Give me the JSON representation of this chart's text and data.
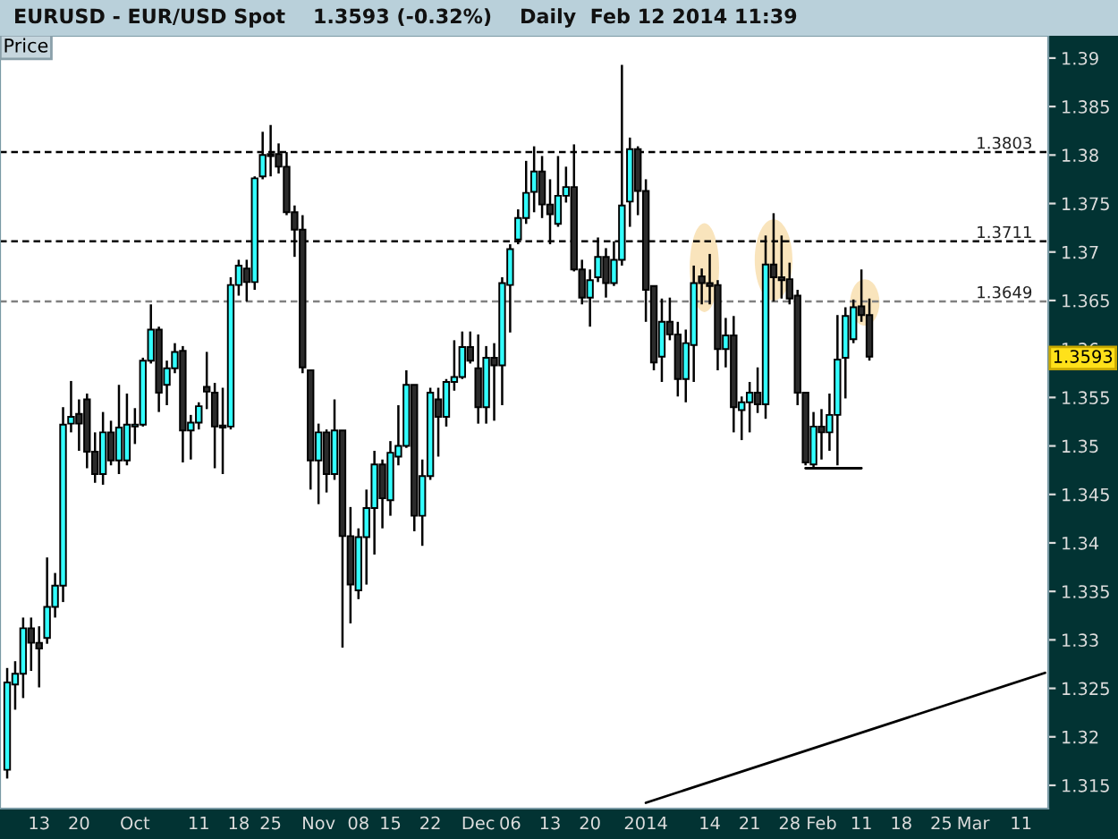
{
  "chart_data": {
    "type": "candlestick",
    "title": "EURUSD - EUR/USD Spot    1.3593 (-0.32%)    Daily  Feb 12 2014 11:39",
    "categories": [
      null,
      null,
      null,
      null,
      "13",
      null,
      null,
      null,
      null,
      "20",
      null,
      null,
      null,
      null,
      null,
      null,
      "Oct",
      null,
      null,
      null,
      null,
      null,
      null,
      null,
      "11",
      null,
      null,
      null,
      null,
      "18",
      null,
      null,
      null,
      "25",
      null,
      null,
      null,
      null,
      null,
      "Nov",
      null,
      null,
      null,
      null,
      "08",
      null,
      null,
      null,
      "15",
      null,
      null,
      null,
      null,
      "22",
      null,
      null,
      null,
      null,
      null,
      "Dec",
      null,
      null,
      null,
      "06",
      null,
      null,
      null,
      null,
      "13",
      null,
      null,
      null,
      null,
      "20",
      null,
      null,
      null,
      null,
      null,
      null,
      "2014",
      null,
      null,
      null,
      null,
      null,
      null,
      null,
      "14",
      null,
      null,
      null,
      null,
      "21",
      null,
      null,
      null,
      null,
      "28",
      null,
      null,
      null,
      "Feb",
      null,
      null,
      null,
      null,
      "11",
      null,
      null,
      null,
      null,
      "18",
      null,
      null,
      null,
      null,
      "25",
      null,
      null,
      null,
      "Mar",
      null,
      null,
      null,
      null,
      null,
      "11",
      null,
      null,
      null
    ],
    "ohlc": [
      [
        1.3166,
        1.3271,
        1.3157,
        1.3256
      ],
      [
        1.3254,
        1.3278,
        1.3228,
        1.3265
      ],
      [
        1.3265,
        1.3323,
        1.324,
        1.3312
      ],
      [
        1.3312,
        1.3323,
        1.3268,
        1.3297
      ],
      [
        1.3297,
        1.3314,
        1.3251,
        1.3291
      ],
      [
        1.3302,
        1.3385,
        1.3296,
        1.3334
      ],
      [
        1.3334,
        1.3369,
        1.3323,
        1.3356
      ],
      [
        1.3356,
        1.354,
        1.3339,
        1.3522
      ],
      [
        1.3523,
        1.3567,
        1.3514,
        1.353
      ],
      [
        1.3533,
        1.3548,
        1.3495,
        1.3523
      ],
      [
        1.3548,
        1.3554,
        1.3477,
        1.3494
      ],
      [
        1.3494,
        1.3514,
        1.3462,
        1.3471
      ],
      [
        1.3471,
        1.3535,
        1.346,
        1.3514
      ],
      [
        1.3514,
        1.3526,
        1.348,
        1.3485
      ],
      [
        1.3485,
        1.3563,
        1.3471,
        1.3519
      ],
      [
        1.3485,
        1.3554,
        1.348,
        1.3522
      ],
      [
        1.352,
        1.3539,
        1.3502,
        1.3522
      ],
      [
        1.3522,
        1.3591,
        1.352,
        1.3588
      ],
      [
        1.3588,
        1.3646,
        1.3585,
        1.362
      ],
      [
        1.362,
        1.3623,
        1.3535,
        1.3555
      ],
      [
        1.3563,
        1.3588,
        1.3542,
        1.358
      ],
      [
        1.358,
        1.3606,
        1.3575,
        1.3597
      ],
      [
        1.3598,
        1.3603,
        1.3483,
        1.3516
      ],
      [
        1.3516,
        1.3532,
        1.3486,
        1.3524
      ],
      [
        1.3524,
        1.3545,
        1.3517,
        1.3541
      ],
      [
        1.3561,
        1.3597,
        1.3538,
        1.3556
      ],
      [
        1.3555,
        1.3565,
        1.3477,
        1.352
      ],
      [
        1.3521,
        1.356,
        1.3471,
        1.3519
      ],
      [
        1.352,
        1.3674,
        1.3517,
        1.3666
      ],
      [
        1.3666,
        1.3692,
        1.3655,
        1.3686
      ],
      [
        1.3683,
        1.3692,
        1.3649,
        1.3669
      ],
      [
        1.3669,
        1.3778,
        1.3661,
        1.3776
      ],
      [
        1.3778,
        1.3824,
        1.3775,
        1.38
      ],
      [
        1.3801,
        1.3831,
        1.3778,
        1.3799
      ],
      [
        1.3801,
        1.3812,
        1.3781,
        1.3788
      ],
      [
        1.3788,
        1.3803,
        1.3738,
        1.3741
      ],
      [
        1.3741,
        1.3748,
        1.3695,
        1.3723
      ],
      [
        1.3723,
        1.3738,
        1.3575,
        1.3581
      ],
      [
        1.3578,
        1.3578,
        1.3455,
        1.3485
      ],
      [
        1.3485,
        1.3523,
        1.344,
        1.3514
      ],
      [
        1.3514,
        1.3517,
        1.3452,
        1.3471
      ],
      [
        1.3471,
        1.3548,
        1.3465,
        1.3516
      ],
      [
        1.3516,
        1.3516,
        1.3292,
        1.3407
      ],
      [
        1.3407,
        1.3437,
        1.3317,
        1.3357
      ],
      [
        1.3351,
        1.3415,
        1.3342,
        1.3406
      ],
      [
        1.3406,
        1.3455,
        1.3357,
        1.3436
      ],
      [
        1.3436,
        1.3495,
        1.3388,
        1.3481
      ],
      [
        1.3481,
        1.3486,
        1.3415,
        1.3446
      ],
      [
        1.3444,
        1.3505,
        1.3428,
        1.3493
      ],
      [
        1.3489,
        1.3542,
        1.348,
        1.35
      ],
      [
        1.35,
        1.3578,
        1.3498,
        1.3563
      ],
      [
        1.3563,
        1.3563,
        1.3412,
        1.3428
      ],
      [
        1.3428,
        1.3486,
        1.3397,
        1.3469
      ],
      [
        1.3469,
        1.356,
        1.3465,
        1.3555
      ],
      [
        1.3548,
        1.356,
        1.3489,
        1.353
      ],
      [
        1.353,
        1.3569,
        1.352,
        1.3566
      ],
      [
        1.3566,
        1.3609,
        1.3557,
        1.3571
      ],
      [
        1.3571,
        1.3618,
        1.3569,
        1.3602
      ],
      [
        1.3602,
        1.3618,
        1.3585,
        1.3588
      ],
      [
        1.358,
        1.3615,
        1.3523,
        1.354
      ],
      [
        1.354,
        1.3603,
        1.3523,
        1.3591
      ],
      [
        1.3591,
        1.3606,
        1.3526,
        1.3583
      ],
      [
        1.3583,
        1.3674,
        1.3542,
        1.3668
      ],
      [
        1.3666,
        1.3708,
        1.3617,
        1.3703
      ],
      [
        1.3713,
        1.3744,
        1.3708,
        1.3735
      ],
      [
        1.3735,
        1.3794,
        1.3729,
        1.3761
      ],
      [
        1.3762,
        1.3809,
        1.3741,
        1.3783
      ],
      [
        1.3783,
        1.3799,
        1.3735,
        1.3749
      ],
      [
        1.3749,
        1.3775,
        1.3708,
        1.3739
      ],
      [
        1.3729,
        1.3799,
        1.3726,
        1.3758
      ],
      [
        1.3758,
        1.3788,
        1.3751,
        1.3767
      ],
      [
        1.3767,
        1.3811,
        1.368,
        1.3682
      ],
      [
        1.3682,
        1.3692,
        1.3646,
        1.3653
      ],
      [
        1.3653,
        1.3682,
        1.3623,
        1.3671
      ],
      [
        1.3674,
        1.3715,
        1.3669,
        1.3695
      ],
      [
        1.3695,
        1.3704,
        1.3653,
        1.3668
      ],
      [
        1.3668,
        1.3711,
        1.3665,
        1.3692
      ],
      [
        1.3692,
        1.3893,
        1.3686,
        1.3748
      ],
      [
        1.3752,
        1.3818,
        1.3726,
        1.3806
      ],
      [
        1.3806,
        1.3809,
        1.3738,
        1.3763
      ],
      [
        1.3763,
        1.3775,
        1.3628,
        1.3661
      ],
      [
        1.3665,
        1.3665,
        1.3578,
        1.3586
      ],
      [
        1.3592,
        1.3652,
        1.3566,
        1.3628
      ],
      [
        1.3628,
        1.3653,
        1.3609,
        1.3615
      ],
      [
        1.3615,
        1.3628,
        1.3551,
        1.3569
      ],
      [
        1.3569,
        1.362,
        1.3545,
        1.3606
      ],
      [
        1.3604,
        1.3686,
        1.3566,
        1.3668
      ],
      [
        1.3675,
        1.3683,
        1.3646,
        1.3668
      ],
      [
        1.3668,
        1.3698,
        1.3646,
        1.3665
      ],
      [
        1.3666,
        1.3671,
        1.3578,
        1.36
      ],
      [
        1.36,
        1.3632,
        1.3581,
        1.3614
      ],
      [
        1.3614,
        1.3634,
        1.3514,
        1.354
      ],
      [
        1.3537,
        1.3551,
        1.3506,
        1.3545
      ],
      [
        1.3545,
        1.3566,
        1.3514,
        1.3555
      ],
      [
        1.3555,
        1.3581,
        1.3534,
        1.3543
      ],
      [
        1.3543,
        1.3717,
        1.3528,
        1.3687
      ],
      [
        1.3687,
        1.374,
        1.3649,
        1.3674
      ],
      [
        1.3674,
        1.3717,
        1.3652,
        1.3671
      ],
      [
        1.3672,
        1.3689,
        1.3646,
        1.3652
      ],
      [
        1.3655,
        1.3661,
        1.3542,
        1.3555
      ],
      [
        1.3555,
        1.3555,
        1.348,
        1.3483
      ],
      [
        1.3481,
        1.3535,
        1.3477,
        1.352
      ],
      [
        1.352,
        1.3538,
        1.3486,
        1.3514
      ],
      [
        1.3514,
        1.3554,
        1.3495,
        1.3532
      ],
      [
        1.3532,
        1.3635,
        1.348,
        1.3589
      ],
      [
        1.3591,
        1.3643,
        1.3549,
        1.3634
      ],
      [
        1.361,
        1.3651,
        1.3606,
        1.3643
      ],
      [
        1.3644,
        1.3682,
        1.3628,
        1.3635
      ],
      [
        1.3635,
        1.3652,
        1.3588,
        1.3592
      ],
      null,
      null,
      null,
      null,
      null,
      null,
      null,
      null,
      null,
      null,
      null,
      null,
      null,
      null,
      null,
      null,
      null,
      null,
      null,
      null,
      null,
      null
    ],
    "colors": [
      "#33ffff",
      "#33ffff",
      "#33ffff",
      "#2b2b2b",
      "#2b2b2b",
      "#33ffff",
      "#33ffff",
      "#33ffff",
      "#33ffff",
      "#2b2b2b",
      "#2b2b2b",
      "#2b2b2b",
      "#33ffff",
      "#2b2b2b",
      "#33ffff",
      "#33ffff",
      "#33ffff",
      "#33ffff",
      "#33ffff",
      "#2b2b2b",
      "#33ffff",
      "#33ffff",
      "#2b2b2b",
      "#33ffff",
      "#33ffff",
      "#2b2b2b",
      "#2b2b2b",
      "#2b2b2b",
      "#33ffff",
      "#33ffff",
      "#2b2b2b",
      "#33ffff",
      "#33ffff",
      "#2b2b2b",
      "#2b2b2b",
      "#2b2b2b",
      "#2b2b2b",
      "#2b2b2b",
      "#2b2b2b",
      "#33ffff",
      "#2b2b2b",
      "#33ffff",
      "#2b2b2b",
      "#2b2b2b",
      "#33ffff",
      "#33ffff",
      "#33ffff",
      "#2b2b2b",
      "#33ffff",
      "#33ffff",
      "#33ffff",
      "#2b2b2b",
      "#33ffff",
      "#33ffff",
      "#2b2b2b",
      "#33ffff",
      "#33ffff",
      "#33ffff",
      "#2b2b2b",
      "#2b2b2b",
      "#33ffff",
      "#2b2b2b",
      "#33ffff",
      "#33ffff",
      "#33ffff",
      "#33ffff",
      "#33ffff",
      "#2b2b2b",
      "#2b2b2b",
      "#33ffff",
      "#33ffff",
      "#2b2b2b",
      "#2b2b2b",
      "#33ffff",
      "#33ffff",
      "#2b2b2b",
      "#33ffff",
      "#33ffff",
      "#33ffff",
      "#2b2b2b",
      "#2b2b2b",
      "#2b2b2b",
      "#33ffff",
      "#2b2b2b",
      "#2b2b2b",
      "#33ffff",
      "#33ffff",
      "#2b2b2b",
      "#2b2b2b",
      "#2b2b2b",
      "#33ffff",
      "#2b2b2b",
      "#33ffff",
      "#33ffff",
      "#2b2b2b",
      "#33ffff",
      "#2b2b2b",
      "#2b2b2b",
      "#2b2b2b",
      "#2b2b2b",
      "#2b2b2b",
      "#33ffff",
      "#2b2b2b",
      "#33ffff",
      "#33ffff",
      "#33ffff",
      "#33ffff",
      "#2b2b2b",
      "#2b2b2b",
      null,
      null,
      null,
      null,
      null,
      null,
      null,
      null,
      null,
      null,
      null,
      null,
      null,
      null,
      null,
      null,
      null,
      null,
      null,
      null,
      null,
      null
    ],
    "ylim": [
      1.3126,
      1.3923
    ],
    "yticks": [
      1.315,
      1.32,
      1.325,
      1.33,
      1.335,
      1.34,
      1.345,
      1.35,
      1.355,
      1.36,
      1.365,
      1.37,
      1.375,
      1.38,
      1.385,
      1.39
    ],
    "ref_lines": [
      {
        "axis": "y",
        "value": 1.3803,
        "label": "1.3803",
        "color": "#000000",
        "line_style": "dashed"
      },
      {
        "axis": "y",
        "value": 1.3711,
        "label": "1.3711",
        "color": "#000000",
        "line_style": "dashed"
      },
      {
        "axis": "y",
        "value": 1.3649,
        "label": "1.3649",
        "color": "#808080",
        "line_style": "dashed"
      }
    ],
    "series": [
      {
        "type": "line",
        "values": [
          null,
          null,
          null,
          null,
          null,
          null,
          null,
          null,
          null,
          null,
          null,
          null,
          null,
          null,
          null,
          null,
          null,
          null,
          null,
          null,
          null,
          null,
          null,
          null,
          null,
          null,
          null,
          null,
          null,
          null,
          null,
          null,
          null,
          null,
          null,
          null,
          null,
          null,
          null,
          null,
          null,
          null,
          null,
          null,
          null,
          null,
          null,
          null,
          null,
          null,
          null,
          null,
          null,
          null,
          null,
          null,
          null,
          null,
          null,
          null,
          null,
          null,
          null,
          null,
          null,
          null,
          null,
          null,
          null,
          null,
          null,
          null,
          null,
          null,
          null,
          null,
          null,
          null,
          null,
          null,
          1.3132,
          null,
          null,
          null,
          null,
          null,
          null,
          null,
          null,
          null,
          null,
          null,
          null,
          null,
          null,
          null,
          null,
          null,
          null,
          null,
          null,
          null,
          null,
          null,
          null,
          null,
          null,
          null,
          null,
          null,
          null,
          null,
          null,
          null,
          null,
          null,
          null,
          null,
          null,
          null,
          null,
          null,
          null,
          null,
          null,
          null,
          null,
          null,
          null,
          null,
          1.3266
        ],
        "color": "#000000"
      },
      {
        "type": "line",
        "values": [
          null,
          null,
          null,
          null,
          null,
          null,
          null,
          null,
          null,
          null,
          null,
          null,
          null,
          null,
          null,
          null,
          null,
          null,
          null,
          null,
          null,
          null,
          null,
          null,
          null,
          null,
          null,
          null,
          null,
          null,
          null,
          null,
          null,
          null,
          null,
          null,
          null,
          null,
          null,
          null,
          null,
          null,
          null,
          null,
          null,
          null,
          null,
          null,
          null,
          null,
          null,
          null,
          null,
          null,
          null,
          null,
          null,
          null,
          null,
          null,
          null,
          null,
          null,
          null,
          null,
          null,
          null,
          null,
          null,
          null,
          null,
          null,
          null,
          null,
          null,
          null,
          null,
          null,
          null,
          null,
          null,
          null,
          null,
          null,
          null,
          null,
          null,
          null,
          null,
          null,
          null,
          null,
          null,
          null,
          null,
          null,
          null,
          null,
          null,
          null,
          1.3477,
          null,
          null,
          null,
          null,
          null,
          null,
          1.3477,
          null,
          null,
          null,
          null,
          null,
          null,
          null,
          null,
          null,
          null,
          null,
          null,
          null,
          null,
          null,
          null,
          null,
          null,
          null,
          null,
          null,
          null,
          null
        ],
        "color": "#000000"
      }
    ],
    "annotations": [
      "Price",
      "1.3593"
    ],
    "grid": false,
    "legend": false
  }
}
